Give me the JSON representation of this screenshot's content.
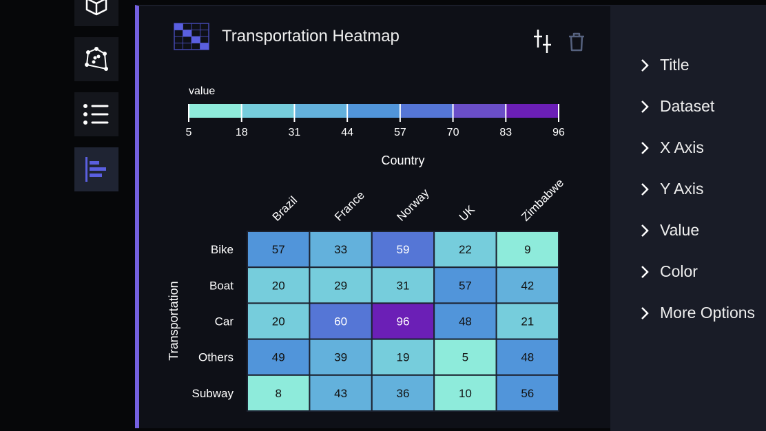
{
  "sidebar": {
    "items": [
      {
        "icon": "cube-icon"
      },
      {
        "icon": "polygon-icon"
      },
      {
        "icon": "list-icon"
      },
      {
        "icon": "bar-chart-icon",
        "active": true
      }
    ]
  },
  "panel": {
    "title": "Transportation Heatmap",
    "icons": [
      "sliders-icon",
      "trash-icon"
    ]
  },
  "settings": {
    "items": [
      "Title",
      "Dataset",
      "X Axis",
      "Y Axis",
      "Value",
      "Color",
      "More Options"
    ]
  },
  "chart_data": {
    "type": "heatmap",
    "title": "Transportation Heatmap",
    "xlabel": "Country",
    "ylabel": "Transportation",
    "x": [
      "Brazil",
      "France",
      "Norway",
      "UK",
      "Zimbabwe"
    ],
    "y": [
      "Bike",
      "Boat",
      "Car",
      "Others",
      "Subway"
    ],
    "values": [
      [
        57,
        33,
        59,
        22,
        9
      ],
      [
        20,
        29,
        31,
        57,
        42
      ],
      [
        20,
        60,
        96,
        48,
        21
      ],
      [
        49,
        39,
        19,
        5,
        48
      ],
      [
        8,
        43,
        36,
        10,
        56
      ]
    ],
    "legend": {
      "title": "value",
      "ticks": [
        5,
        18,
        31,
        44,
        57,
        70,
        83,
        96
      ],
      "colors": [
        "#8eebdb",
        "#76cddc",
        "#63b1dc",
        "#5195da",
        "#5576d6",
        "#6a4ec8",
        "#6b1fb6"
      ]
    }
  }
}
